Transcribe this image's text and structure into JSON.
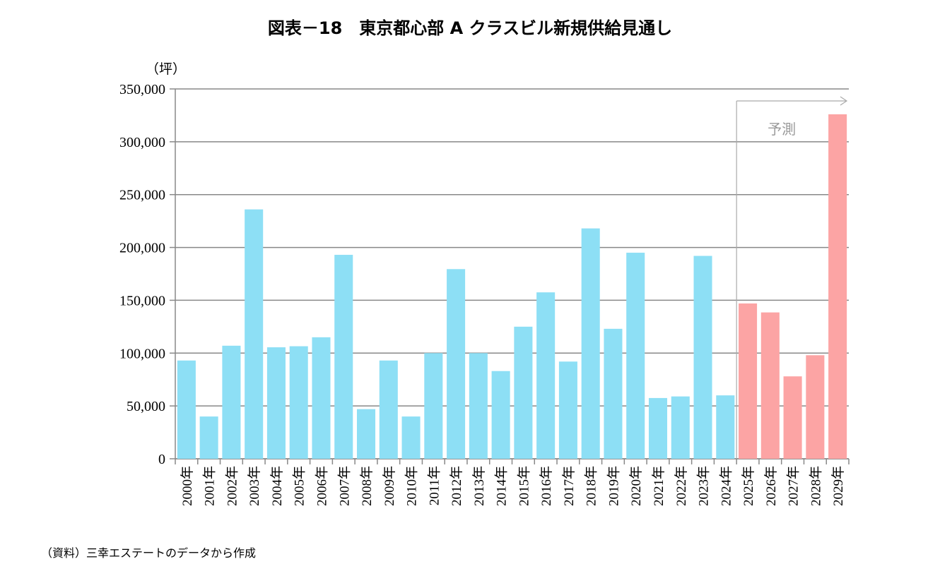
{
  "chart_data": {
    "type": "bar",
    "title": "図表－18　東京都心部 A クラスビル新規供給見通し",
    "y_unit": "（坪）",
    "ylim": [
      0,
      350000
    ],
    "yticks": [
      "0",
      "50,000",
      "100,000",
      "150,000",
      "200,000",
      "250,000",
      "300,000",
      "350,000"
    ],
    "grid": true,
    "categories": [
      "2000年",
      "2001年",
      "2002年",
      "2003年",
      "2004年",
      "2005年",
      "2006年",
      "2007年",
      "2008年",
      "2009年",
      "2010年",
      "2011年",
      "2012年",
      "2013年",
      "2014年",
      "2015年",
      "2016年",
      "2017年",
      "2018年",
      "2019年",
      "2020年",
      "2021年",
      "2022年",
      "2023年",
      "2024年",
      "2025年",
      "2026年",
      "2027年",
      "2028年",
      "2029年"
    ],
    "values": [
      93000,
      40000,
      107000,
      236000,
      105500,
      106500,
      115000,
      193000,
      47000,
      93000,
      40000,
      100000,
      179500,
      100000,
      83000,
      125000,
      157500,
      92000,
      218000,
      123000,
      195000,
      57500,
      59000,
      192000,
      60000,
      147000,
      138500,
      78000,
      98000,
      326000
    ],
    "forecast_from": "2025年",
    "forecast_label": "予測",
    "colors": {
      "actual": "#8ddff5",
      "forecast": "#fca4a4",
      "grid": "#888888",
      "arrow": "#aaaaaa"
    }
  },
  "source_note": "（資料）三幸エステートのデータから作成"
}
